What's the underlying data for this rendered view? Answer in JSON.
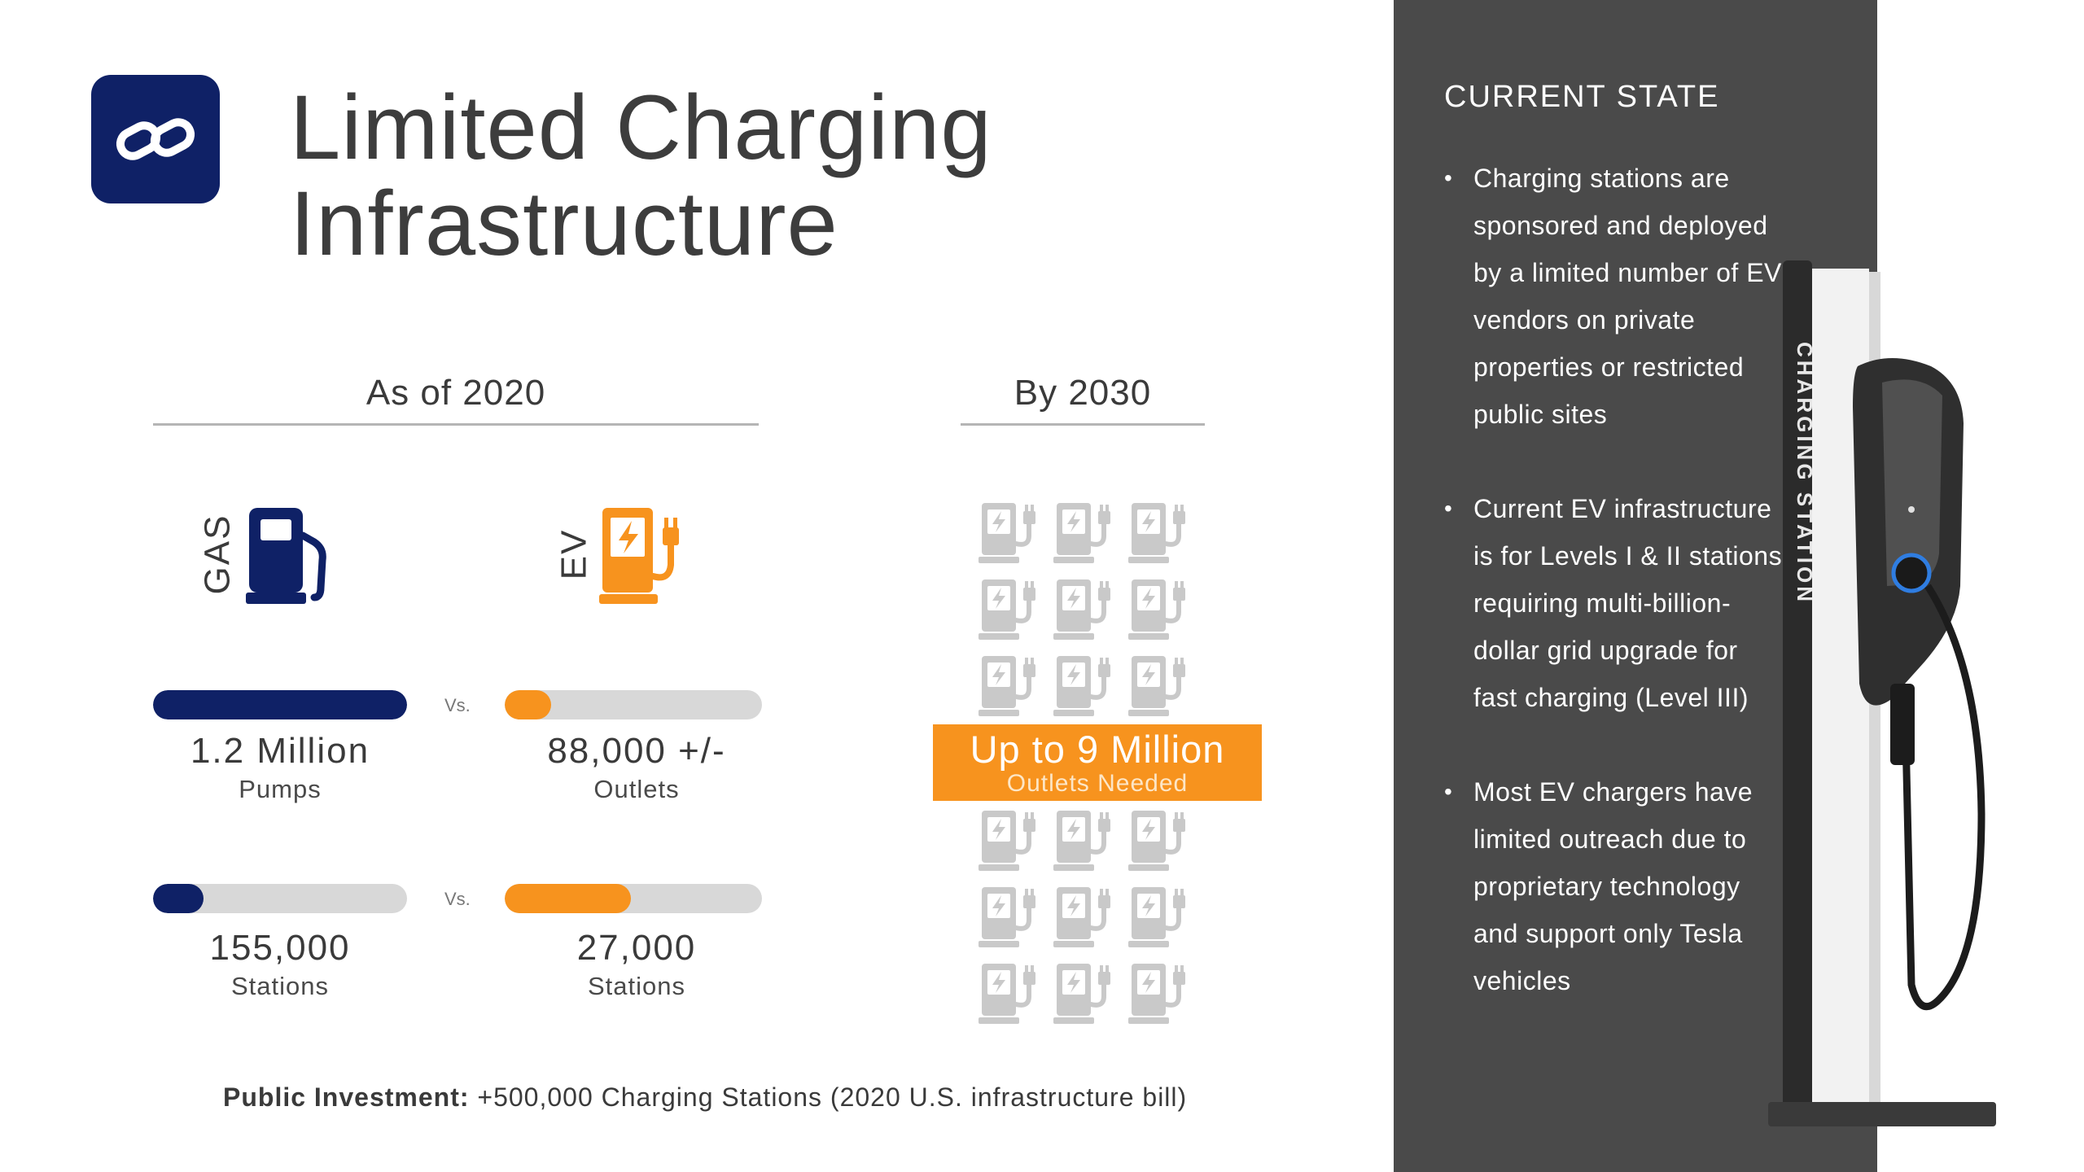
{
  "header": {
    "title_line1": "Limited Charging",
    "title_line2": "Infrastructure"
  },
  "sections": {
    "current": "As of 2020",
    "future": "By 2030"
  },
  "labels": {
    "gas": "GAS",
    "ev": "EV",
    "vs": "Vs."
  },
  "stats": [
    {
      "value": "1.2 Million",
      "unit": "Pumps",
      "fill_fraction": 1.0,
      "color": "#0f2166"
    },
    {
      "value": "88,000 +/-",
      "unit": "Outlets",
      "fill_fraction": 0.18,
      "color": "#f7931e"
    },
    {
      "value": "155,000",
      "unit": "Stations",
      "fill_fraction": 0.2,
      "color": "#0f2166"
    },
    {
      "value": "27,000",
      "unit": "Stations",
      "fill_fraction": 0.49,
      "color": "#f7931e"
    }
  ],
  "projection": {
    "headline": "Up to 9 Million",
    "subline": "Outlets Needed"
  },
  "footer": {
    "label": "Public Investment:",
    "text": "+500,000 Charging Stations (2020 U.S. infrastructure bill)"
  },
  "panel": {
    "title": "CURRENT STATE",
    "bullets": [
      "Charging stations are sponsored and deployed by a limited number of EV vendors on private properties or restricted public sites",
      "Current EV infrastructure is for Levels I & II stations requiring multi-billion-dollar grid upgrade for fast charging (Level III)",
      "Most EV chargers have limited outreach due to proprietary technology and support only Tesla vehicles"
    ],
    "station_label": "CHARGING STATION"
  },
  "colors": {
    "navy": "#0f2166",
    "orange": "#f7931e",
    "panel": "#4a4a4a",
    "icon_gray": "#c9c9c9"
  }
}
